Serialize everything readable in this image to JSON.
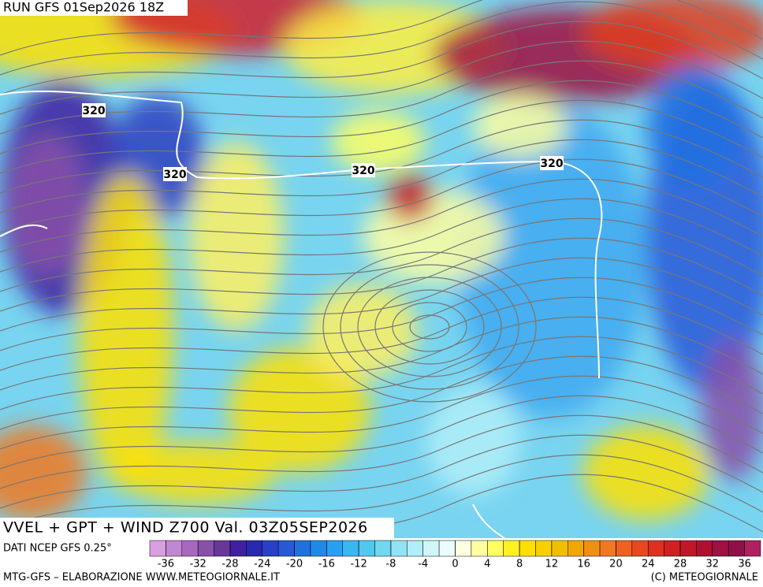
{
  "header": {
    "run": "RUN GFS 01Sep2026 18Z"
  },
  "map": {
    "contour_labels": [
      "320",
      "320",
      "320",
      "320"
    ]
  },
  "legend": {
    "title": "VVEL + GPT + WIND Z700 Val. 03Z05SEP2026",
    "source": "DATI NCEP GFS 0.25°",
    "lim": [
      -38,
      38
    ],
    "ticks": [
      -36,
      -32,
      -28,
      -24,
      -20,
      -16,
      -12,
      -8,
      -4,
      0,
      4,
      8,
      12,
      16,
      20,
      24,
      28,
      32,
      36
    ],
    "colors": [
      "#d8a0e0",
      "#c088d0",
      "#a868c0",
      "#8850a8",
      "#683898",
      "#4020a0",
      "#2828b0",
      "#2840c8",
      "#2858d8",
      "#2070e0",
      "#2088e8",
      "#28a0f0",
      "#38b8f0",
      "#50c8f0",
      "#70d8f0",
      "#90e4f4",
      "#b0eef8",
      "#d0f6fa",
      "#ecfcfc",
      "#ffffe0",
      "#ffffa0",
      "#ffff60",
      "#fff020",
      "#ffe000",
      "#f8d000",
      "#f0c000",
      "#f0a800",
      "#f09010",
      "#f07820",
      "#f06020",
      "#e84820",
      "#e03020",
      "#d02020",
      "#c01828",
      "#b01030",
      "#a01040",
      "#901048",
      "#b02060"
    ]
  },
  "footer": {
    "left": "MTG-GFS – ELABORAZIONE WWW.METEOGIORNALE.IT",
    "right": "(C) METEOGIORNALE"
  }
}
